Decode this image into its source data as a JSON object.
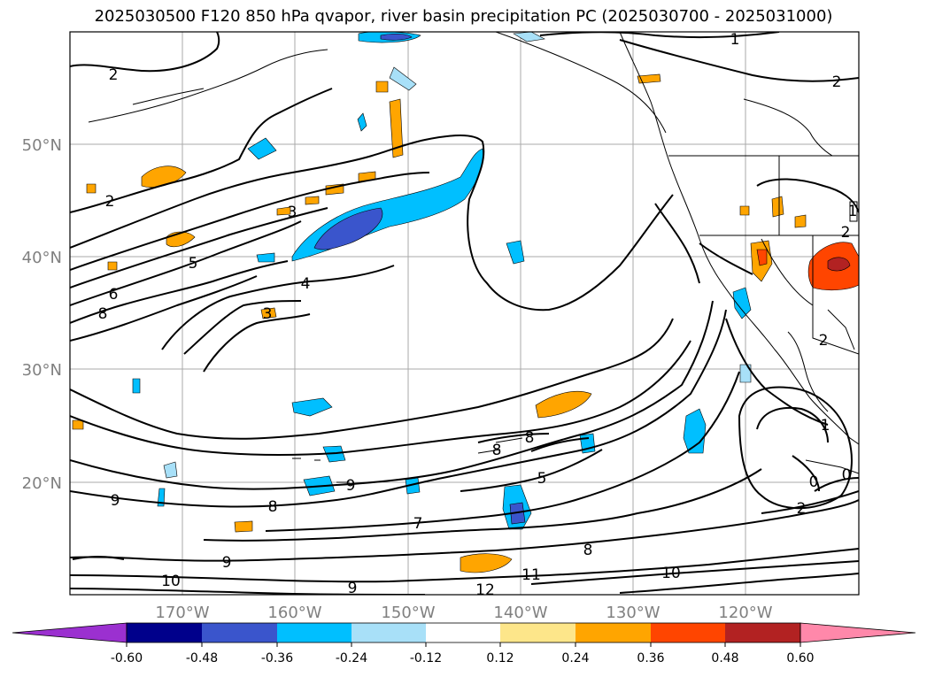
{
  "title": "2025030500 F120 850 hPa qvapor, river basin precipitation PC (2025030700 - 2025031000)",
  "axes": {
    "lon_ticks": [
      "170°W",
      "160°W",
      "150°W",
      "140°W",
      "130°W",
      "120°W"
    ],
    "lat_ticks": [
      "50°N",
      "40°N",
      "30°N",
      "20°N"
    ],
    "lon_range": [
      -180,
      -110
    ],
    "lat_range": [
      10,
      60
    ],
    "gridlines": true
  },
  "colorbar": {
    "ticks": [
      "-0.60",
      "-0.48",
      "-0.36",
      "-0.24",
      "-0.12",
      "0.12",
      "0.24",
      "0.36",
      "0.48",
      "0.60"
    ],
    "colors": {
      "below": "#9b30d0",
      "bins": [
        "#00008b",
        "#3a55cc",
        "#00bfff",
        "#a8e0f8",
        "#ffffff",
        "#fde68a",
        "#ffa500",
        "#ff4500",
        "#b22222"
      ],
      "above": "#ff88aa"
    }
  },
  "contour_labels": [
    "1",
    "2",
    "2",
    "2",
    "3",
    "5",
    "6",
    "8",
    "4",
    "3",
    "8",
    "8",
    "5",
    "9",
    "8",
    "9",
    "7",
    "8",
    "9",
    "10",
    "9",
    "12",
    "11",
    "10",
    "2",
    "0",
    "0",
    "1",
    "2",
    "2",
    "1"
  ]
}
